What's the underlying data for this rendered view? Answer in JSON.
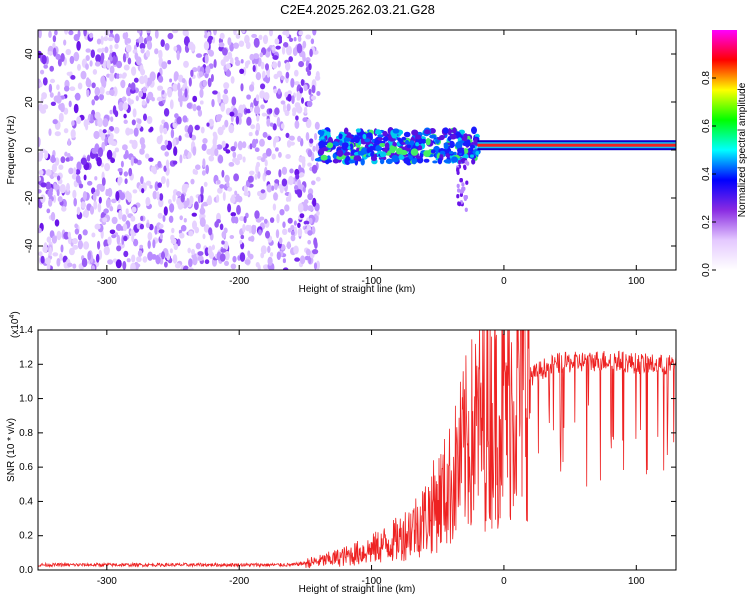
{
  "title": "C2E4.2025.262.03.21.G28",
  "chart_data": [
    {
      "type": "heatmap",
      "name": "spectrogram",
      "xlabel": "Height of straight line (km)",
      "ylabel": "Frequency (Hz)",
      "xlim": [
        -352,
        130
      ],
      "ylim": [
        -50,
        50
      ],
      "xticks": [
        -300,
        -200,
        -100,
        0,
        100
      ],
      "yticks": [
        -40,
        -20,
        0,
        20,
        40
      ],
      "colorbar": {
        "label": "Normalized spectral amplitude",
        "range": [
          0,
          1
        ],
        "ticks": [
          0.0,
          0.2,
          0.4,
          0.6,
          0.8
        ],
        "tick_labels": [
          "0.0",
          "0.2",
          "0.4",
          "0.6",
          "0.8"
        ],
        "colormap": [
          "#ffffff",
          "#e4c8ff",
          "#8a2be2",
          "#0000ff",
          "#00ffff",
          "#00ff00",
          "#ffff00",
          "#ff0000",
          "#ff00ff"
        ]
      },
      "regions": [
        {
          "desc": "broadband noise",
          "x_range": [
            -352,
            -140
          ],
          "freq_range": [
            -50,
            50
          ],
          "amplitude": 0.05
        },
        {
          "desc": "scattered signal",
          "x_range": [
            -140,
            -20
          ],
          "freq_range": [
            -10,
            12
          ],
          "amplitude": 0.4
        },
        {
          "desc": "tone",
          "x_range": [
            -20,
            130
          ],
          "freq_center": 2,
          "amplitude": 0.95
        }
      ]
    },
    {
      "type": "line",
      "name": "snr",
      "xlabel": "Height of straight line (km)",
      "ylabel": "SNR (10 * v/v)",
      "y_multiplier": "(x10",
      "y_exponent": "4",
      "xlim": [
        -352,
        130
      ],
      "ylim": [
        0,
        1.4
      ],
      "xticks": [
        -300,
        -200,
        -100,
        0,
        100
      ],
      "yticks": [
        0.0,
        0.2,
        0.4,
        0.6,
        0.8,
        1.0,
        1.2,
        1.4
      ],
      "ytick_labels": [
        "0.0",
        "0.2",
        "0.4",
        "0.6",
        "0.8",
        "1.0",
        "1.2",
        "1.4"
      ],
      "color": "#ee2222",
      "series": [
        {
          "name": "SNR",
          "x": [
            -352,
            -300,
            -250,
            -200,
            -160,
            -140,
            -120,
            -100,
            -80,
            -60,
            -40,
            -30,
            -20,
            -10,
            0,
            10,
            20,
            30,
            40,
            60,
            80,
            100,
            120,
            130
          ],
          "y": [
            0.03,
            0.03,
            0.03,
            0.03,
            0.03,
            0.05,
            0.08,
            0.12,
            0.18,
            0.3,
            0.5,
            0.7,
            0.85,
            0.92,
            0.95,
            1.05,
            1.15,
            1.2,
            1.23,
            1.24,
            1.25,
            1.23,
            1.22,
            1.22
          ]
        }
      ]
    }
  ]
}
